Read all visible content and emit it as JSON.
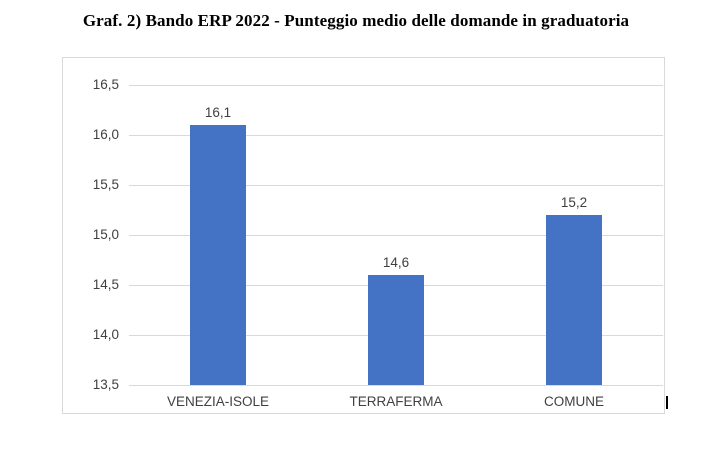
{
  "page": {
    "title": "Graf. 2) Bando ERP 2022 - Punteggio medio delle domande in graduatoria"
  },
  "chart_data": {
    "type": "bar",
    "title": "Graf. 2) Bando ERP 2022 - Punteggio medio delle domande in graduatoria",
    "categories": [
      "VENEZIA-ISOLE",
      "TERRAFERMA",
      "COMUNE"
    ],
    "values": [
      16.1,
      14.6,
      15.2
    ],
    "value_labels": [
      "16,1",
      "14,6",
      "15,2"
    ],
    "xlabel": "",
    "ylabel": "",
    "ylim": [
      13.5,
      16.5
    ],
    "ytick_step": 0.5,
    "ytick_labels": [
      "16,5",
      "16,0",
      "15,5",
      "15,0",
      "14,5",
      "14,0",
      "13,5"
    ],
    "grid": true,
    "legend": "none",
    "colors": {
      "bar": "#4472C4",
      "gridline": "#D9D9D9",
      "frame_border": "#D9D9D9",
      "axis_text": "#404040",
      "title_text": "#000000"
    }
  },
  "artifacts": {
    "text_cursor_present": true
  }
}
